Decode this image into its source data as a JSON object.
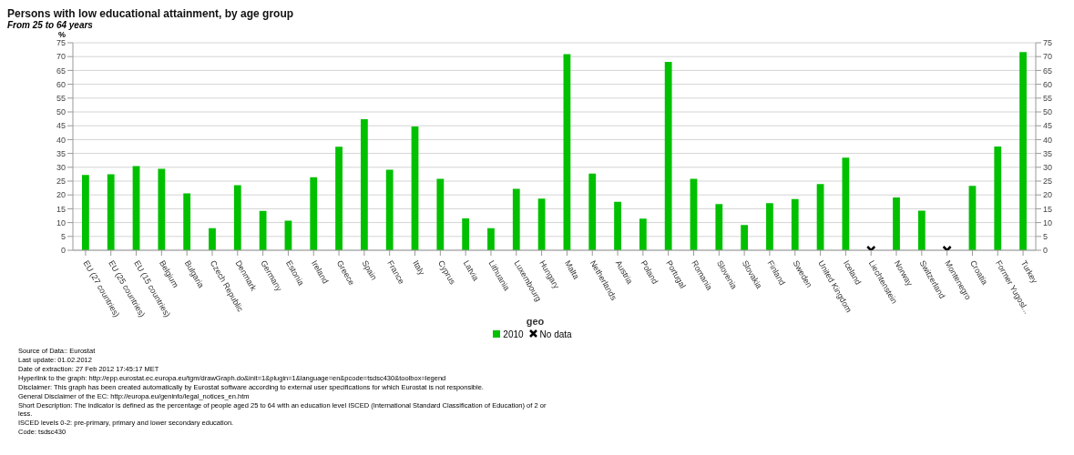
{
  "chart_data": {
    "type": "bar",
    "title": "Persons with low educational attainment, by age group",
    "ylabel": "%",
    "subtitle": "From 25 to 64 years",
    "xlabel": "geo",
    "categories": [
      "EU (27 countries)",
      "EU (25 countries)",
      "EU (15 countries)",
      "Belgium",
      "Bulgaria",
      "Czech Republic",
      "Denmark",
      "Germany",
      "Estonia",
      "Ireland",
      "Greece",
      "Spain",
      "France",
      "Italy",
      "Cyprus",
      "Latvia",
      "Lithuania",
      "Luxembourg",
      "Hungary",
      "Malta",
      "Netherlands",
      "Austria",
      "Poland",
      "Portugal",
      "Romania",
      "Slovenia",
      "Slovakia",
      "Finland",
      "Sweden",
      "United Kingdom",
      "Iceland",
      "Liechtenstein",
      "Norway",
      "Switzerland",
      "Montenegro",
      "Croatia",
      "Former Yugosl...",
      "Turkey"
    ],
    "series": [
      {
        "name": "2010",
        "color": "#00c000",
        "values": [
          27.2,
          27.5,
          30.4,
          29.4,
          20.6,
          8.0,
          23.5,
          14.2,
          10.7,
          26.4,
          37.4,
          47.4,
          29.1,
          44.7,
          25.8,
          11.5,
          8.0,
          22.2,
          18.7,
          70.9,
          27.7,
          17.5,
          11.4,
          68.1,
          25.8,
          16.7,
          9.1,
          17.0,
          18.5,
          23.9,
          33.5,
          null,
          19.1,
          14.3,
          null,
          23.3,
          37.5,
          71.6
        ]
      },
      {
        "name": "No data",
        "type": "scatter",
        "marker": "cross",
        "color": "#000000",
        "values": [
          null,
          null,
          null,
          null,
          null,
          null,
          null,
          null,
          null,
          null,
          null,
          null,
          null,
          null,
          null,
          null,
          null,
          null,
          null,
          null,
          null,
          null,
          null,
          null,
          null,
          null,
          null,
          null,
          null,
          null,
          null,
          0,
          null,
          null,
          0,
          null,
          null,
          null
        ]
      }
    ],
    "ylim": [
      0,
      75
    ],
    "yticks": [
      0,
      5,
      10,
      15,
      20,
      25,
      30,
      35,
      40,
      45,
      50,
      55,
      60,
      65,
      70,
      75
    ],
    "y2lim": [
      0,
      75
    ],
    "y2ticks": [
      0,
      5,
      10,
      15,
      20,
      25,
      30,
      35,
      40,
      45,
      50,
      55,
      60,
      65,
      70,
      75
    ],
    "grid": "y",
    "legend": "bottom",
    "annotations": [
      "Source of Data:: Eurostat",
      "Last update: 01.02.2012",
      "Date of extraction: 27 Feb 2012 17:45:17 MET",
      "Hyperlink to the graph: http://epp.eurostat.ec.europa.eu/tgm/drawGraph.do&init=1&plugin=1&language=en&pcode=tsdsc430&toolbox=legend",
      "Disclaimer: This graph has been created automatically by Eurostat software according to external user specifications for which Eurostat is not responsible.",
      "General Disclaimer of the EC: http://europa.eu/geninfo/legal_notices_en.htm",
      "Short Description: The indicator is defined as the percentage of people aged 25 to 64 with an education level ISCED (International Standard Classification of Education) of 2 or less.",
      "ISCED levels 0-2: pre-primary, primary and lower secondary education.",
      "Code: tsdsc430"
    ]
  }
}
